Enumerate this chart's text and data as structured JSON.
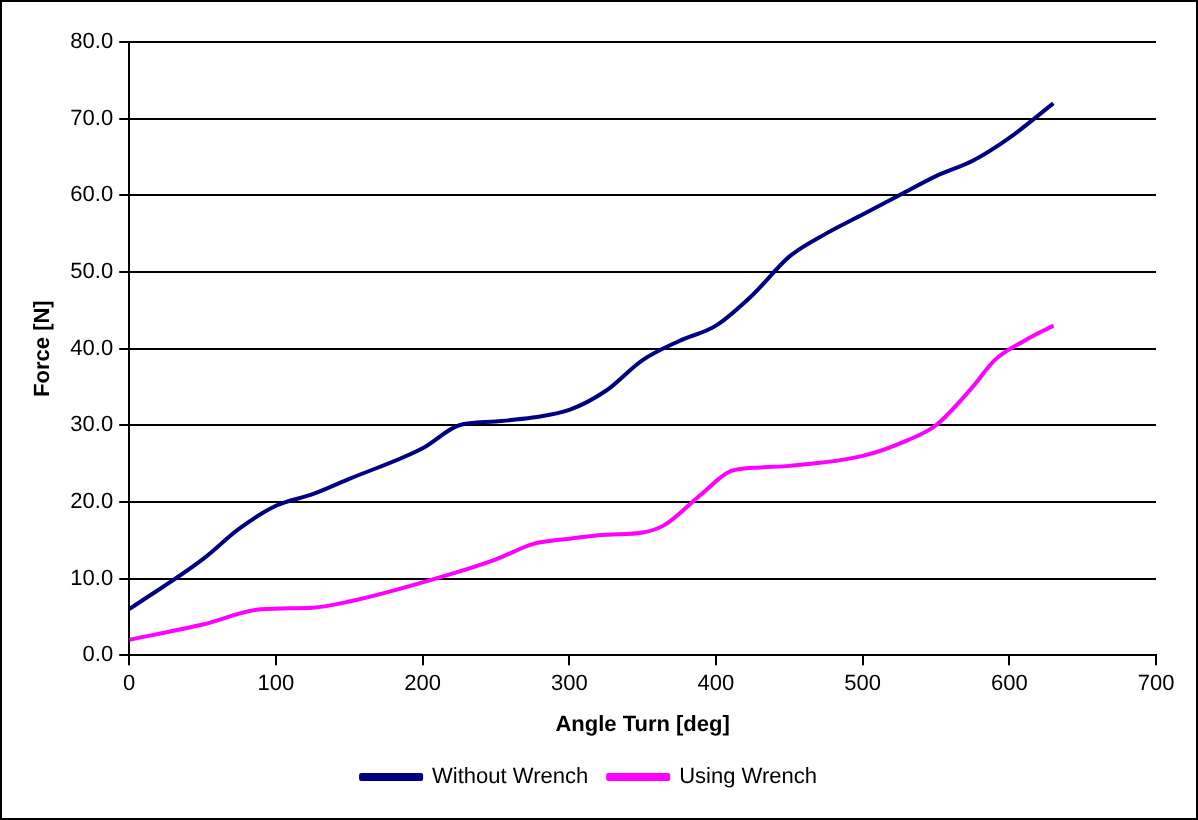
{
  "chart_data": {
    "type": "line",
    "xlabel": "Angle Turn [deg]",
    "ylabel": "Force [N]",
    "xlim": [
      0,
      700
    ],
    "xticks": [
      0,
      100,
      200,
      300,
      400,
      500,
      600,
      700
    ],
    "ylim": [
      0,
      80
    ],
    "yticks": [
      {
        "value": 0,
        "label": "0.0"
      },
      {
        "value": 10,
        "label": "10.0"
      },
      {
        "value": 20,
        "label": "20.0"
      },
      {
        "value": 30,
        "label": "30.0"
      },
      {
        "value": 40,
        "label": "40.0"
      },
      {
        "value": 50,
        "label": "50.0"
      },
      {
        "value": 60,
        "label": "60.0"
      },
      {
        "value": 70,
        "label": "70.0"
      },
      {
        "value": 80,
        "label": "80.0"
      }
    ],
    "grid": "y",
    "legend": "bottom",
    "marker": "none",
    "line_style": "solid",
    "series": [
      {
        "name": "Without Wrench",
        "color": "#000080",
        "x": [
          0,
          50,
          75,
          100,
          125,
          150,
          200,
          225,
          250,
          275,
          300,
          325,
          350,
          375,
          400,
          425,
          450,
          475,
          500,
          525,
          550,
          575,
          600,
          630
        ],
        "values": [
          6,
          12.5,
          16.5,
          19.5,
          21,
          23,
          27,
          30,
          30.5,
          31,
          32,
          34.5,
          38.5,
          41,
          43,
          47,
          52,
          55,
          57.5,
          60,
          62.5,
          64.5,
          67.5,
          72
        ]
      },
      {
        "name": "Using Wrench",
        "color": "#ff00ff",
        "x": [
          0,
          50,
          90,
          125,
          150,
          200,
          250,
          275,
          300,
          325,
          350,
          365,
          390,
          410,
          430,
          450,
          500,
          530,
          550,
          575,
          590,
          610,
          630
        ],
        "values": [
          2,
          4,
          6,
          6.2,
          7,
          9.5,
          12.5,
          14.5,
          15.2,
          15.7,
          16,
          17,
          21,
          24,
          24.5,
          24.7,
          26,
          28,
          30,
          35,
          38.5,
          41,
          43
        ]
      }
    ]
  }
}
